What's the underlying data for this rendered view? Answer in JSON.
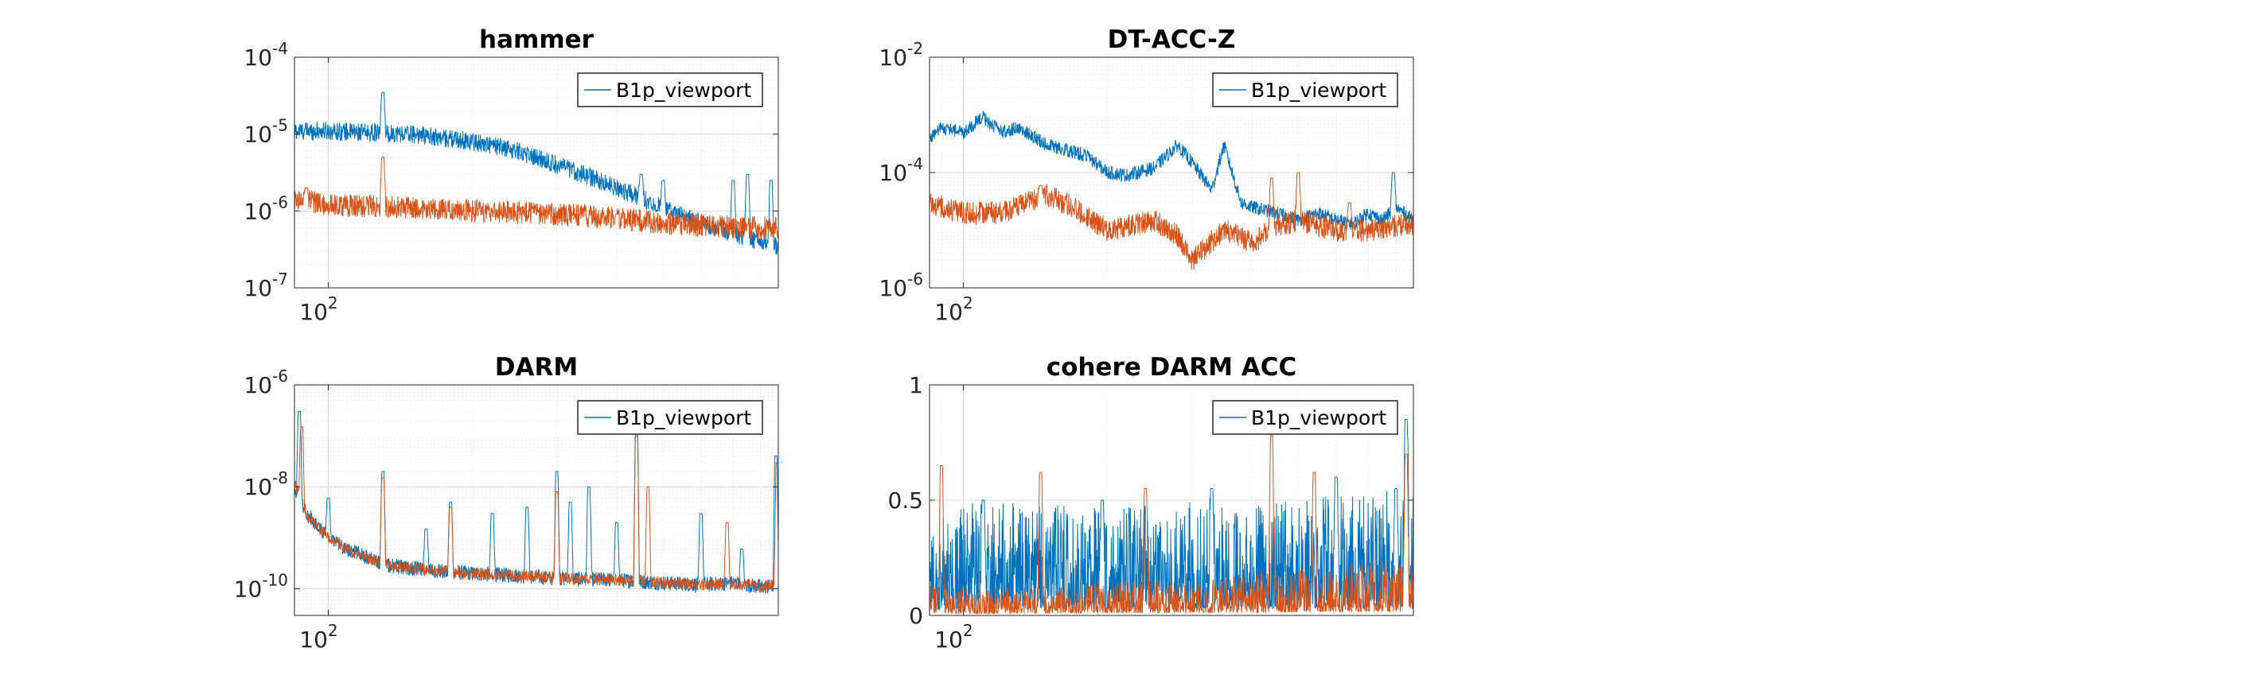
{
  "figure": {
    "colors": {
      "series1": "#0072BD",
      "series2": "#D95319",
      "axis": "#262626",
      "grid": "#d9d9d9",
      "minor_grid": "#eeeeee"
    }
  },
  "chart_data": [
    {
      "id": "hammer",
      "type": "line",
      "title": "hammer",
      "xscale": "log",
      "yscale": "log",
      "xlim": [
        85,
        870
      ],
      "ylim": [
        1e-07,
        0.0001
      ],
      "x_ticks": [
        {
          "value": 100,
          "base": "10",
          "exp": "2"
        }
      ],
      "y_ticks": [
        {
          "value": 1e-07,
          "base": "10",
          "exp": "-7"
        },
        {
          "value": 1e-06,
          "base": "10",
          "exp": "-6"
        },
        {
          "value": 1e-05,
          "base": "10",
          "exp": "-5"
        },
        {
          "value": 0.0001,
          "base": "10",
          "exp": "-4"
        }
      ],
      "grid": true,
      "minor_grid": true,
      "legend": {
        "position": "top-right",
        "entries": [
          "B1p_viewport"
        ]
      },
      "series": [
        {
          "name": "B1p_viewport",
          "color": "#0072BD",
          "noise_amp": 0.12,
          "x": [
            85,
            100,
            120,
            150,
            200,
            250,
            300,
            350,
            400,
            450,
            500,
            550,
            600,
            650,
            700,
            750,
            800,
            870
          ],
          "y": [
            1.1e-05,
            1.1e-05,
            1.05e-05,
            1e-05,
            8e-06,
            6e-06,
            4e-06,
            2.8e-06,
            2e-06,
            1.5e-06,
            1.1e-06,
            8.5e-07,
            7e-07,
            6e-07,
            5e-07,
            4.5e-07,
            4e-07,
            3.5e-07
          ],
          "peaks": [
            {
              "x": 130,
              "y": 3.5e-05
            },
            {
              "x": 450,
              "y": 3e-06
            },
            {
              "x": 500,
              "y": 2.5e-06
            },
            {
              "x": 700,
              "y": 2.5e-06
            },
            {
              "x": 750,
              "y": 3e-06
            },
            {
              "x": 840,
              "y": 2.5e-06
            }
          ]
        },
        {
          "name": "",
          "color": "#D95319",
          "noise_amp": 0.15,
          "x": [
            85,
            100,
            150,
            200,
            250,
            300,
            350,
            400,
            500,
            600,
            700,
            800,
            870
          ],
          "y": [
            1.5e-06,
            1.2e-06,
            1.1e-06,
            1e-06,
            9.5e-07,
            9e-07,
            8.5e-07,
            8e-07,
            7e-07,
            6.5e-07,
            6.2e-07,
            6e-07,
            6e-07
          ],
          "peaks": [
            {
              "x": 130,
              "y": 5e-06
            },
            {
              "x": 90,
              "y": 2e-06
            },
            {
              "x": 400,
              "y": 9e-07
            }
          ]
        }
      ]
    },
    {
      "id": "dtaccz",
      "type": "line",
      "title": "DT-ACC-Z",
      "xscale": "log",
      "yscale": "log",
      "xlim": [
        85,
        870
      ],
      "ylim": [
        1e-06,
        0.01
      ],
      "x_ticks": [
        {
          "value": 100,
          "base": "10",
          "exp": "2"
        }
      ],
      "y_ticks": [
        {
          "value": 1e-06,
          "base": "10",
          "exp": "-6"
        },
        {
          "value": 0.0001,
          "base": "10",
          "exp": "-4"
        },
        {
          "value": 0.01,
          "base": "10",
          "exp": "-2"
        }
      ],
      "grid": true,
      "minor_grid": true,
      "legend": {
        "position": "top-right",
        "entries": [
          "B1p_viewport"
        ]
      },
      "series": [
        {
          "name": "B1p_viewport",
          "color": "#0072BD",
          "noise_amp": 0.12,
          "x": [
            85,
            90,
            100,
            110,
            120,
            130,
            150,
            180,
            200,
            220,
            250,
            280,
            300,
            330,
            350,
            380,
            400,
            450,
            500,
            550,
            600,
            650,
            700,
            750,
            800,
            870
          ],
          "y": [
            0.0004,
            0.0006,
            0.0005,
            0.0009,
            0.0005,
            0.0006,
            0.0003,
            0.0002,
            0.0001,
            9e-05,
            0.00012,
            0.0003,
            0.00015,
            5e-05,
            0.0003,
            3e-05,
            2.5e-05,
            2e-05,
            1.5e-05,
            2e-05,
            1.5e-05,
            1.3e-05,
            2e-05,
            1.5e-05,
            2.5e-05,
            1.5e-05
          ],
          "peaks": [
            {
              "x": 790,
              "y": 0.0001
            }
          ]
        },
        {
          "name": "",
          "color": "#D95319",
          "noise_amp": 0.2,
          "x": [
            85,
            100,
            120,
            150,
            170,
            200,
            250,
            280,
            300,
            350,
            400,
            450,
            500,
            600,
            700,
            800,
            870
          ],
          "y": [
            3e-05,
            2e-05,
            2e-05,
            4e-05,
            2.5e-05,
            1e-05,
            1.5e-05,
            8e-06,
            3e-06,
            1e-05,
            6e-06,
            1.2e-05,
            1.5e-05,
            1e-05,
            1e-05,
            1.2e-05,
            1.3e-05
          ],
          "peaks": [
            {
              "x": 145,
              "y": 6e-05
            },
            {
              "x": 440,
              "y": 8e-05
            },
            {
              "x": 500,
              "y": 0.0001
            },
            {
              "x": 640,
              "y": 3e-05
            }
          ]
        }
      ]
    },
    {
      "id": "darm",
      "type": "line",
      "title": "DARM",
      "xscale": "log",
      "yscale": "log",
      "xlim": [
        85,
        870
      ],
      "ylim": [
        3e-11,
        1e-06
      ],
      "x_ticks": [
        {
          "value": 100,
          "base": "10",
          "exp": "2"
        }
      ],
      "y_ticks": [
        {
          "value": 1e-10,
          "base": "10",
          "exp": "-10"
        },
        {
          "value": 1e-08,
          "base": "10",
          "exp": "-8"
        },
        {
          "value": 1e-06,
          "base": "10",
          "exp": "-6"
        }
      ],
      "grid": true,
      "minor_grid": true,
      "legend": {
        "position": "top-right",
        "entries": [
          "B1p_viewport"
        ]
      },
      "series": [
        {
          "name": "B1p_viewport",
          "color": "#0072BD",
          "noise_amp": 0.15,
          "x": [
            85,
            90,
            100,
            110,
            130,
            150,
            200,
            250,
            300,
            400,
            500,
            600,
            700,
            800,
            870
          ],
          "y": [
            1e-08,
            3e-09,
            1e-09,
            6e-10,
            3e-10,
            2.5e-10,
            2e-10,
            1.8e-10,
            1.6e-10,
            1.5e-10,
            1.3e-10,
            1.2e-10,
            1.3e-10,
            1.1e-10,
            1.1e-10
          ],
          "peaks": [
            {
              "x": 87,
              "y": 3e-07
            },
            {
              "x": 100,
              "y": 6e-09
            },
            {
              "x": 130,
              "y": 2e-08
            },
            {
              "x": 160,
              "y": 1.5e-09
            },
            {
              "x": 180,
              "y": 5e-09
            },
            {
              "x": 220,
              "y": 3e-09
            },
            {
              "x": 260,
              "y": 4e-09
            },
            {
              "x": 300,
              "y": 2e-08
            },
            {
              "x": 320,
              "y": 5e-09
            },
            {
              "x": 350,
              "y": 1e-08
            },
            {
              "x": 400,
              "y": 2e-09
            },
            {
              "x": 440,
              "y": 1e-07
            },
            {
              "x": 600,
              "y": 3e-09
            },
            {
              "x": 730,
              "y": 6e-10
            },
            {
              "x": 860,
              "y": 4e-08
            }
          ]
        },
        {
          "name": "",
          "color": "#D95319",
          "noise_amp": 0.12,
          "x": [
            85,
            90,
            100,
            110,
            130,
            150,
            200,
            250,
            300,
            400,
            500,
            600,
            700,
            800,
            870
          ],
          "y": [
            1.2e-08,
            3e-09,
            1e-09,
            6e-10,
            3e-10,
            2.5e-10,
            2e-10,
            1.8e-10,
            1.6e-10,
            1.5e-10,
            1.3e-10,
            1.2e-10,
            1.3e-10,
            1.1e-10,
            1.2e-10
          ],
          "peaks": [
            {
              "x": 88,
              "y": 1.5e-07
            },
            {
              "x": 130,
              "y": 1.5e-08
            },
            {
              "x": 180,
              "y": 4e-09
            },
            {
              "x": 300,
              "y": 8e-09
            },
            {
              "x": 440,
              "y": 2e-07
            },
            {
              "x": 465,
              "y": 1e-08
            },
            {
              "x": 680,
              "y": 2e-09
            },
            {
              "x": 865,
              "y": 3e-08
            }
          ]
        }
      ]
    },
    {
      "id": "cohere",
      "type": "line",
      "title": "cohere DARM ACC",
      "xscale": "log",
      "yscale": "linear",
      "xlim": [
        85,
        870
      ],
      "ylim": [
        0,
        1
      ],
      "x_ticks": [
        {
          "value": 100,
          "base": "10",
          "exp": "2"
        }
      ],
      "y_ticks": [
        {
          "value": 0,
          "label": "0"
        },
        {
          "value": 0.5,
          "label": "0.5"
        },
        {
          "value": 1,
          "label": "1"
        }
      ],
      "grid": true,
      "minor_grid": true,
      "legend": {
        "position": "top-right",
        "entries": [
          "B1p_viewport"
        ]
      },
      "series": [
        {
          "name": "B1p_viewport",
          "color": "#0072BD",
          "noise_amp": 0.7,
          "x": [
            85,
            100,
            150,
            200,
            300,
            400,
            500,
            600,
            700,
            800,
            870
          ],
          "y": [
            0.12,
            0.15,
            0.15,
            0.14,
            0.15,
            0.15,
            0.15,
            0.16,
            0.16,
            0.17,
            0.18
          ],
          "peaks": [
            {
              "x": 840,
              "y": 0.85
            },
            {
              "x": 110,
              "y": 0.5
            },
            {
              "x": 195,
              "y": 0.5
            },
            {
              "x": 330,
              "y": 0.55
            },
            {
              "x": 600,
              "y": 0.6
            },
            {
              "x": 800,
              "y": 0.55
            }
          ]
        },
        {
          "name": "",
          "color": "#D95319",
          "noise_amp": 0.6,
          "x": [
            85,
            100,
            150,
            200,
            300,
            400,
            500,
            600,
            700,
            870
          ],
          "y": [
            0.05,
            0.04,
            0.04,
            0.05,
            0.05,
            0.06,
            0.07,
            0.07,
            0.08,
            0.08
          ],
          "peaks": [
            {
              "x": 90,
              "y": 0.65
            },
            {
              "x": 145,
              "y": 0.62
            },
            {
              "x": 240,
              "y": 0.55
            },
            {
              "x": 440,
              "y": 0.78
            },
            {
              "x": 540,
              "y": 0.62
            },
            {
              "x": 840,
              "y": 0.7
            }
          ]
        }
      ]
    }
  ]
}
